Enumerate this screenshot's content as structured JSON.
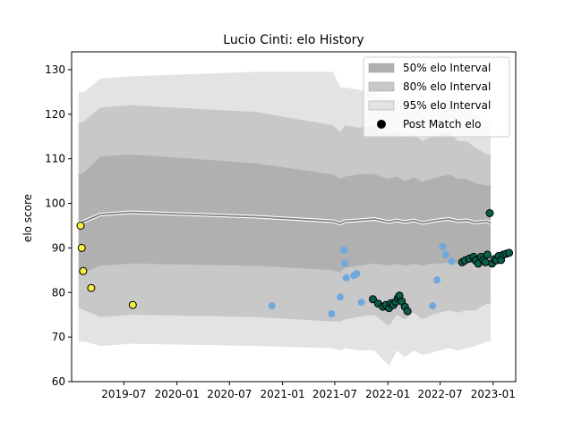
{
  "chart_data": {
    "type": "scatter",
    "title": "Lucio Cinti: elo History",
    "xlabel": "",
    "ylabel": "elo score",
    "xlim": [
      "2019-01-01",
      "2023-03-20"
    ],
    "ylim": [
      60,
      134
    ],
    "x_ticks": [
      "2019-07",
      "2020-01",
      "2020-07",
      "2021-01",
      "2021-07",
      "2022-01",
      "2022-07",
      "2023-01"
    ],
    "y_ticks": [
      60,
      70,
      80,
      90,
      100,
      110,
      120,
      130
    ],
    "grid": false,
    "legend_placement": "top-right",
    "legend": [
      {
        "label": "50% elo Interval",
        "kind": "patch",
        "color": "#b0b0b0"
      },
      {
        "label": "80% elo Interval",
        "kind": "patch",
        "color": "#c8c8c8"
      },
      {
        "label": "95% elo Interval",
        "kind": "patch",
        "color": "#e3e3e3"
      },
      {
        "label": "Post Match elo",
        "kind": "marker",
        "color": "#000000"
      }
    ],
    "colors": {
      "band95": "#e3e3e3",
      "band80": "#c8c8c8",
      "band50": "#b0b0b0",
      "mean_line": "#808080",
      "mean_halo": "#ffffff",
      "early": "#f5f03c",
      "middle": "#6fa8dc",
      "late": "#0b5e4a"
    },
    "bands": {
      "x": [
        "2019-01-25",
        "2019-02-15",
        "2019-04-10",
        "2019-07-25",
        "2020-10-01",
        "2021-06-25",
        "2021-07-20",
        "2021-08-05",
        "2021-09-20",
        "2021-11-15",
        "2022-01-05",
        "2022-02-01",
        "2022-03-01",
        "2022-04-01",
        "2022-05-01",
        "2022-06-01",
        "2022-07-01",
        "2022-08-01",
        "2022-09-01",
        "2022-10-01",
        "2022-11-01",
        "2022-12-10",
        "2022-12-23"
      ],
      "mean": [
        95.5,
        96.0,
        97.5,
        98.0,
        97.0,
        96.0,
        95.5,
        96.0,
        96.2,
        96.5,
        95.8,
        96.2,
        95.8,
        96.2,
        95.6,
        96.0,
        96.3,
        96.5,
        96.0,
        96.2,
        95.7,
        96.0,
        95.6
      ],
      "q50_hi": [
        106.5,
        107.0,
        110.5,
        111.0,
        109.0,
        106.5,
        105.5,
        106.0,
        106.5,
        106.5,
        105.5,
        106.0,
        105.0,
        105.8,
        104.8,
        105.5,
        106.0,
        106.5,
        105.5,
        105.5,
        104.5,
        104.0,
        104.0
      ],
      "q50_lo": [
        84.0,
        84.5,
        86.0,
        86.5,
        86.0,
        85.0,
        84.5,
        85.5,
        86.0,
        86.5,
        86.0,
        86.5,
        86.0,
        86.5,
        86.0,
        86.5,
        86.5,
        86.8,
        86.5,
        86.8,
        86.5,
        87.0,
        87.0
      ],
      "q80_hi": [
        118.0,
        118.5,
        121.5,
        122.0,
        120.5,
        117.5,
        116.0,
        117.5,
        117.0,
        117.5,
        115.5,
        116.0,
        115.0,
        115.5,
        114.0,
        115.0,
        115.5,
        116.0,
        114.0,
        114.0,
        112.5,
        111.0,
        111.0
      ],
      "q80_lo": [
        76.5,
        76.0,
        74.5,
        75.0,
        74.5,
        73.5,
        73.5,
        74.0,
        74.5,
        75.0,
        72.5,
        75.0,
        74.0,
        75.5,
        74.0,
        75.0,
        75.5,
        76.0,
        75.5,
        76.0,
        76.0,
        77.5,
        77.5
      ],
      "q95_hi": [
        125.0,
        125.0,
        128.0,
        128.5,
        129.5,
        129.5,
        126.0,
        126.0,
        125.5,
        125.0,
        123.5,
        124.0,
        122.5,
        123.0,
        121.5,
        122.5,
        123.0,
        123.5,
        122.0,
        121.5,
        120.0,
        118.0,
        118.0
      ],
      "q95_lo": [
        69.0,
        69.0,
        68.0,
        68.5,
        68.0,
        67.5,
        67.0,
        67.5,
        67.0,
        67.0,
        63.5,
        67.0,
        65.5,
        67.0,
        66.0,
        66.5,
        67.0,
        67.5,
        67.0,
        67.5,
        68.0,
        69.0,
        69.0
      ]
    },
    "series": [
      {
        "group": "early",
        "x": [
          "2019-02-01",
          "2019-02-05",
          "2019-02-10",
          "2019-03-10",
          "2019-08-01"
        ],
        "y": [
          95.0,
          90.0,
          84.8,
          81.0,
          77.2
        ]
      },
      {
        "group": "middle",
        "x": [
          "2020-11-25",
          "2021-06-20",
          "2021-07-20",
          "2021-08-01",
          "2021-08-05",
          "2021-08-10",
          "2021-09-05",
          "2021-09-15",
          "2021-10-01",
          "2022-06-05",
          "2022-06-20",
          "2022-07-10",
          "2022-07-20",
          "2022-08-10"
        ],
        "y": [
          77.0,
          75.2,
          79.0,
          89.5,
          86.5,
          83.3,
          83.8,
          84.2,
          77.8,
          77.0,
          82.8,
          90.3,
          88.5,
          87.0
        ]
      },
      {
        "group": "late",
        "x": [
          "2021-11-10",
          "2021-11-28",
          "2021-12-15",
          "2021-12-25",
          "2022-01-05",
          "2022-01-12",
          "2022-01-20",
          "2022-01-28",
          "2022-02-05",
          "2022-02-10",
          "2022-02-18",
          "2022-03-01",
          "2022-03-10",
          "2022-09-15",
          "2022-09-25",
          "2022-10-10",
          "2022-10-25",
          "2022-11-01",
          "2022-11-10",
          "2022-11-20",
          "2022-11-28",
          "2022-12-05",
          "2022-12-12",
          "2022-12-20",
          "2022-12-28",
          "2023-01-05",
          "2023-01-12",
          "2023-01-20",
          "2023-01-28",
          "2023-02-05",
          "2023-02-15",
          "2023-02-25"
        ],
        "y": [
          78.5,
          77.5,
          76.8,
          77.2,
          76.5,
          77.6,
          77.2,
          77.9,
          78.8,
          79.3,
          78.0,
          76.8,
          75.8,
          86.8,
          87.2,
          87.6,
          88.0,
          87.2,
          86.5,
          88.0,
          87.3,
          86.8,
          88.5,
          97.8,
          86.5,
          87.5,
          87.2,
          88.2,
          87.3,
          88.5,
          88.7,
          88.9
        ]
      }
    ]
  }
}
